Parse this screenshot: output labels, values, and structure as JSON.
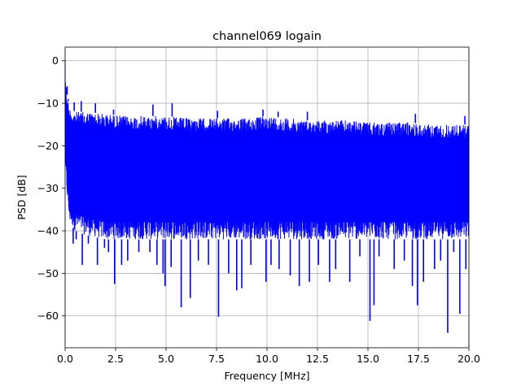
{
  "chart_data": {
    "type": "line",
    "title": "channel069 logain",
    "xlabel": "Frequency [MHz]",
    "ylabel": "PSD [dB]",
    "xlim": [
      0,
      20
    ],
    "ylim": [
      -67.5,
      3.2
    ],
    "xticks": [
      0.0,
      2.5,
      5.0,
      7.5,
      10.0,
      12.5,
      15.0,
      17.5,
      20.0
    ],
    "xtick_labels": [
      "0.0",
      "2.5",
      "5.0",
      "7.5",
      "10.0",
      "12.5",
      "15.0",
      "17.5",
      "20.0"
    ],
    "yticks": [
      0,
      -10,
      -20,
      -30,
      -40,
      -50,
      -60
    ],
    "ytick_labels": [
      "0",
      "−10",
      "−20",
      "−30",
      "−40",
      "−50",
      "−60"
    ],
    "grid": true,
    "colors": {
      "series": "#0000ff",
      "grid": "#b0b0b0",
      "axes": "#000000"
    },
    "series": [
      {
        "x": [
          0.0,
          0.05,
          0.1,
          0.2,
          0.5,
          1.0,
          2.0,
          3.0,
          4.0,
          5.0,
          6.0,
          7.0,
          8.0,
          9.0,
          10.0,
          11.0,
          12.0,
          13.0,
          14.0,
          15.0,
          16.0,
          17.0,
          18.0,
          19.0,
          20.0
        ],
        "upper": [
          -1,
          -6,
          -8,
          -11,
          -12,
          -12,
          -12.5,
          -13,
          -13,
          -13,
          -13.5,
          -13.5,
          -13.5,
          -13.5,
          -13,
          -13.5,
          -14,
          -14,
          -14,
          -14.5,
          -14.5,
          -14.5,
          -15,
          -15,
          -15
        ],
        "lower": [
          -25,
          -30,
          -32,
          -38,
          -40,
          -41,
          -42,
          -42,
          -42,
          -42,
          -42,
          -42,
          -42,
          -42,
          -42,
          -42,
          -42,
          -42,
          -42,
          -42,
          -42,
          -42,
          -42,
          -42,
          -42
        ]
      }
    ],
    "deep_dips": [
      [
        0.4,
        -43
      ],
      [
        0.55,
        -42
      ],
      [
        0.85,
        -48
      ],
      [
        1.15,
        -43
      ],
      [
        1.6,
        -48
      ],
      [
        1.95,
        -44
      ],
      [
        2.15,
        -45
      ],
      [
        2.45,
        -52.5
      ],
      [
        2.8,
        -48
      ],
      [
        3.1,
        -47
      ],
      [
        3.65,
        -45
      ],
      [
        4.2,
        -45
      ],
      [
        4.55,
        -48
      ],
      [
        4.85,
        -50
      ],
      [
        4.95,
        -53
      ],
      [
        5.25,
        -48.5
      ],
      [
        5.75,
        -58
      ],
      [
        6.2,
        -55.8
      ],
      [
        6.6,
        -47
      ],
      [
        7.1,
        -48
      ],
      [
        7.6,
        -60.2
      ],
      [
        8.1,
        -50
      ],
      [
        8.5,
        -54
      ],
      [
        8.75,
        -53.5
      ],
      [
        9.2,
        -48
      ],
      [
        9.95,
        -52
      ],
      [
        10.2,
        -48
      ],
      [
        10.6,
        -49
      ],
      [
        11.15,
        -50.5
      ],
      [
        11.6,
        -53
      ],
      [
        12.1,
        -52
      ],
      [
        12.55,
        -48
      ],
      [
        13.1,
        -52
      ],
      [
        13.4,
        -49
      ],
      [
        14.1,
        -52
      ],
      [
        14.6,
        -46
      ],
      [
        15.1,
        -61.2
      ],
      [
        15.3,
        -57.5
      ],
      [
        15.55,
        -46
      ],
      [
        16.3,
        -49
      ],
      [
        16.8,
        -47
      ],
      [
        17.2,
        -53
      ],
      [
        17.45,
        -57.5
      ],
      [
        17.75,
        -52
      ],
      [
        18.3,
        -49
      ],
      [
        18.6,
        -47
      ],
      [
        18.95,
        -64
      ],
      [
        19.25,
        -45
      ],
      [
        19.55,
        -59.5
      ],
      [
        19.85,
        -49
      ]
    ],
    "peak_spikes": [
      [
        0.1,
        -6
      ],
      [
        0.15,
        -9
      ],
      [
        0.45,
        -9.8
      ],
      [
        0.8,
        -9.5
      ],
      [
        1.5,
        -10
      ],
      [
        2.4,
        -11.5
      ],
      [
        4.35,
        -10.3
      ],
      [
        5.3,
        -10
      ],
      [
        7.55,
        -11.8
      ],
      [
        9.8,
        -11.5
      ],
      [
        10.55,
        -12
      ],
      [
        12.0,
        -12
      ],
      [
        17.35,
        -12.5
      ],
      [
        19.8,
        -13
      ]
    ]
  }
}
